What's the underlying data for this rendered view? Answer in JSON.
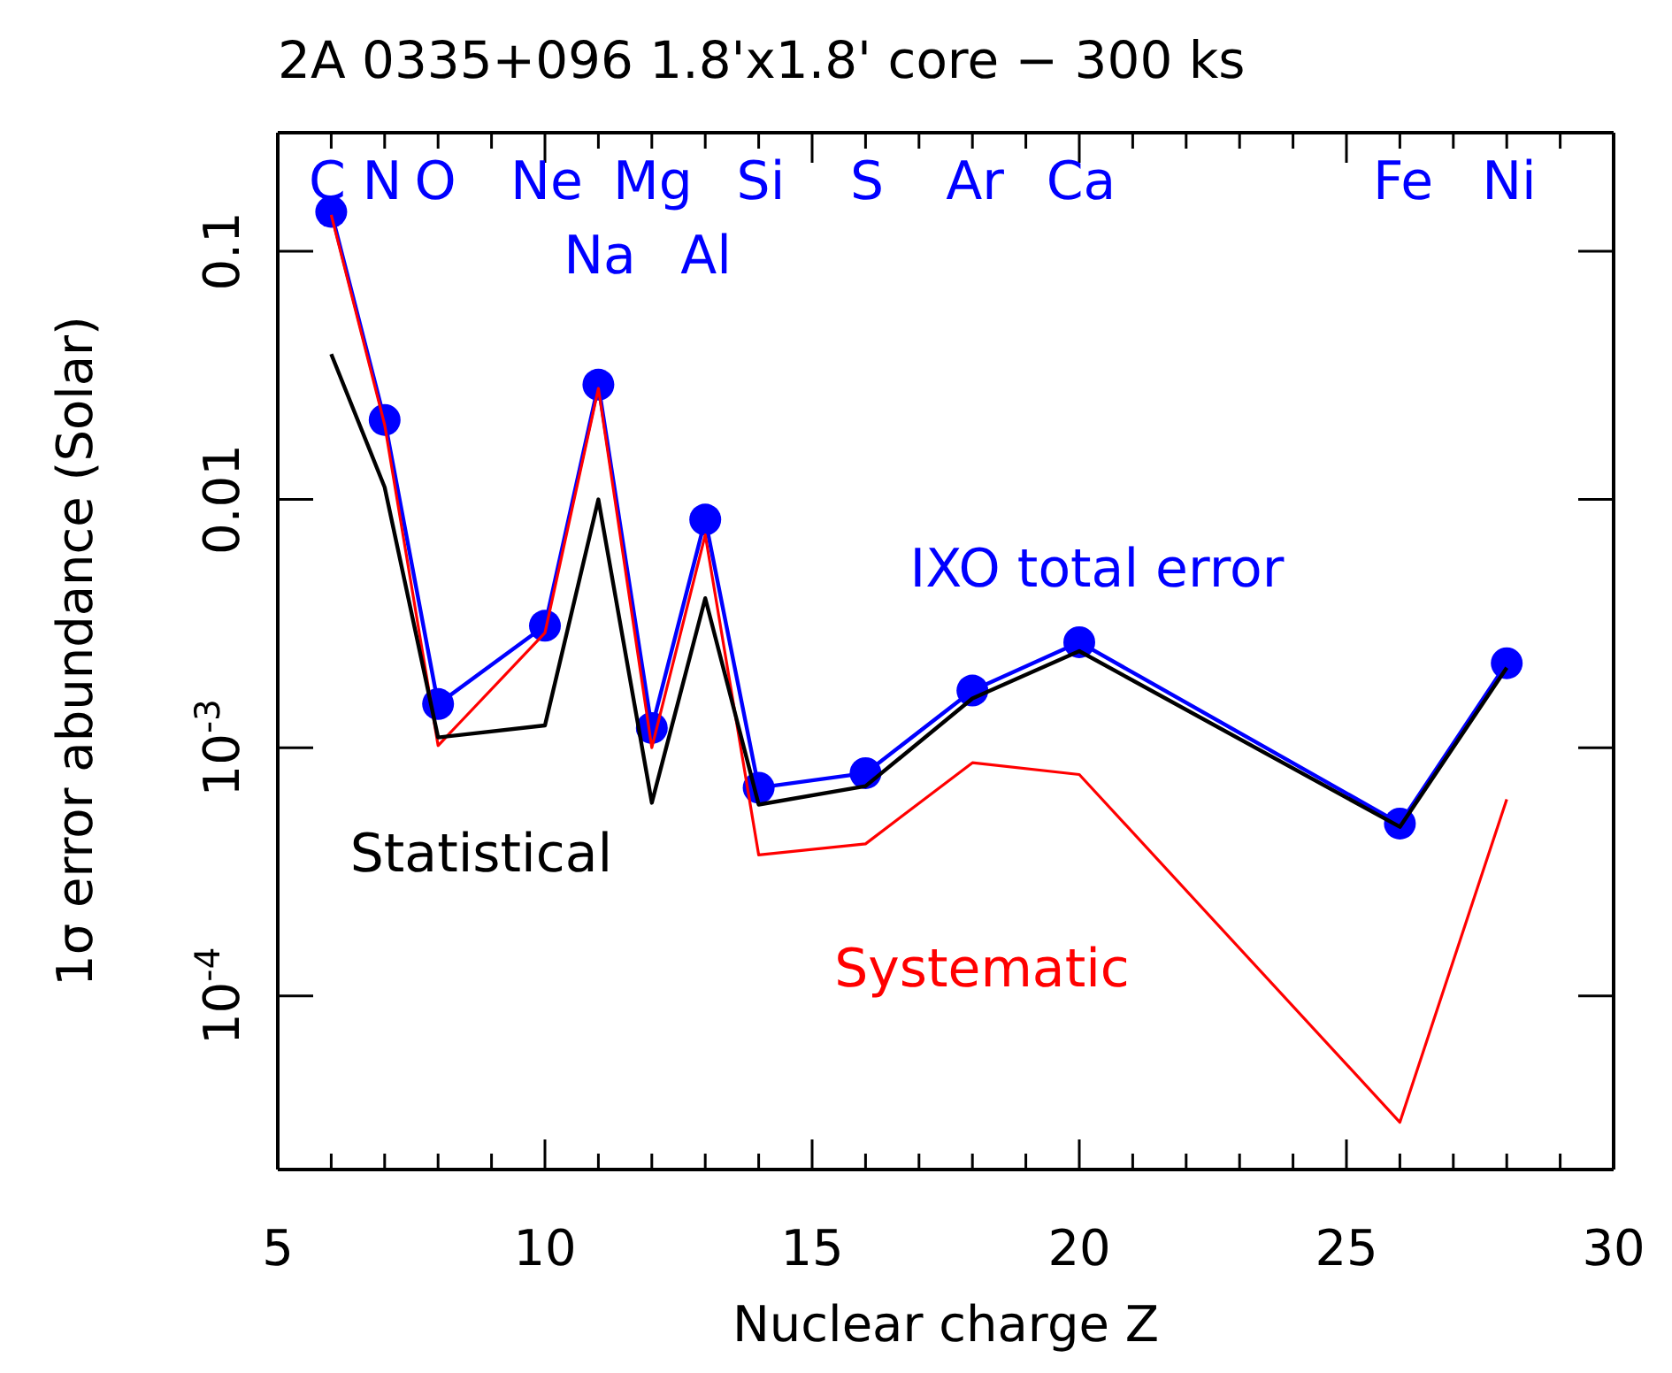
{
  "chart_data": {
    "type": "line",
    "title": "2A 0335+096 1.8'x1.8' core − 300 ks",
    "xlabel": "Nuclear charge Z",
    "ylabel": "1σ error abundance (Solar)",
    "x": [
      6,
      7,
      8,
      10,
      11,
      12,
      13,
      14,
      16,
      18,
      20,
      26,
      28
    ],
    "series": [
      {
        "name": "Statistical",
        "color": "#000000",
        "values": [
          0.0385,
          0.0112,
          0.0011,
          0.00123,
          0.01,
          0.0006,
          0.004,
          0.00059,
          0.0007,
          0.00158,
          0.00245,
          0.00048,
          0.0021
        ]
      },
      {
        "name": "Systematic",
        "color": "#ff0000",
        "values": [
          0.14,
          0.02,
          0.00102,
          0.0029,
          0.028,
          0.001,
          0.0072,
          0.00037,
          0.00041,
          0.00087,
          0.00078,
          3.1e-05,
          0.00062
        ]
      },
      {
        "name": "IXO total error",
        "color": "#0000ff",
        "marker": "circle",
        "values": [
          0.144,
          0.0209,
          0.0015,
          0.0031,
          0.029,
          0.0012,
          0.0083,
          0.00069,
          0.00079,
          0.0017,
          0.00266,
          0.000495,
          0.00219
        ]
      }
    ],
    "log": "y",
    "grid": false,
    "xlim": [
      5,
      30
    ],
    "xticks": [
      5,
      {
        "value": 6,
        "label": null
      },
      {
        "value": 7,
        "label": null
      },
      {
        "value": 8,
        "label": null
      },
      {
        "value": 9,
        "label": null
      },
      10,
      {
        "value": 11,
        "label": null
      },
      {
        "value": 12,
        "label": null
      },
      {
        "value": 13,
        "label": null
      },
      {
        "value": 14,
        "label": null
      },
      15,
      {
        "value": 16,
        "label": null
      },
      {
        "value": 17,
        "label": null
      },
      {
        "value": 18,
        "label": null
      },
      {
        "value": 19,
        "label": null
      },
      20,
      {
        "value": 21,
        "label": null
      },
      {
        "value": 22,
        "label": null
      },
      {
        "value": 23,
        "label": null
      },
      {
        "value": 24,
        "label": null
      },
      25,
      {
        "value": 26,
        "label": null
      },
      {
        "value": 27,
        "label": null
      },
      {
        "value": 28,
        "label": null
      },
      {
        "value": 29,
        "label": null
      },
      30
    ],
    "ylim": [
      2e-05,
      0.3
    ],
    "yticks": [
      {
        "value": 0.0001,
        "label": "10$^{-4}$"
      },
      {
        "value": 0.001,
        "label": "10$^{-3}$"
      },
      {
        "value": 0.01,
        "label": "0.01"
      },
      {
        "value": 0.1,
        "label": "0.1"
      }
    ],
    "annotations": [
      "C",
      "N",
      "O",
      "Ne",
      "Mg",
      "Si",
      "S",
      "Ar",
      "Ca",
      "Fe",
      "Ni",
      "Na",
      "Al"
    ]
  }
}
